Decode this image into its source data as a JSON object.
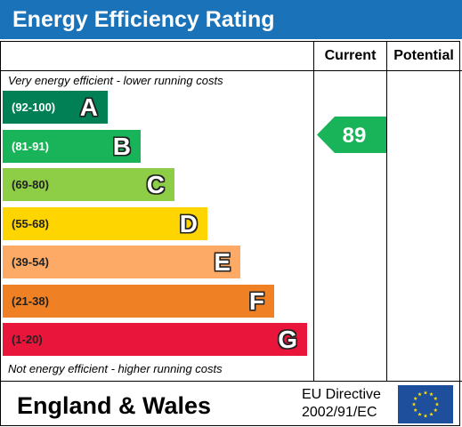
{
  "header": {
    "title": "Energy Efficiency Rating"
  },
  "columns": {
    "current": "Current",
    "potential": "Potential"
  },
  "notes": {
    "top": "Very energy efficient - lower running costs",
    "bottom": "Not energy efficient - higher running costs"
  },
  "footer": {
    "country": "England & Wales",
    "directive_line1": "EU Directive",
    "directive_line2": "2002/91/EC",
    "flag_icon": "eu-flag-icon"
  },
  "chart_data": {
    "type": "bar",
    "title": "Energy Efficiency Rating",
    "bands": [
      {
        "letter": "A",
        "range": "(92-100)",
        "color": "#008054",
        "text_color": "#ffffff"
      },
      {
        "letter": "B",
        "range": "(81-91)",
        "color": "#19b459",
        "text_color": "#ffffff"
      },
      {
        "letter": "C",
        "range": "(69-80)",
        "color": "#8dce46",
        "text_color": "#222222"
      },
      {
        "letter": "D",
        "range": "(55-68)",
        "color": "#ffd500",
        "text_color": "#222222"
      },
      {
        "letter": "E",
        "range": "(39-54)",
        "color": "#fcaa65",
        "text_color": "#222222"
      },
      {
        "letter": "F",
        "range": "(21-38)",
        "color": "#ef8023",
        "text_color": "#222222"
      },
      {
        "letter": "G",
        "range": "(1-20)",
        "color": "#e9153b",
        "text_color": "#222222"
      }
    ],
    "current": {
      "value": 89,
      "band": "B",
      "label": "89",
      "color": "#19b459"
    },
    "potential": null
  }
}
